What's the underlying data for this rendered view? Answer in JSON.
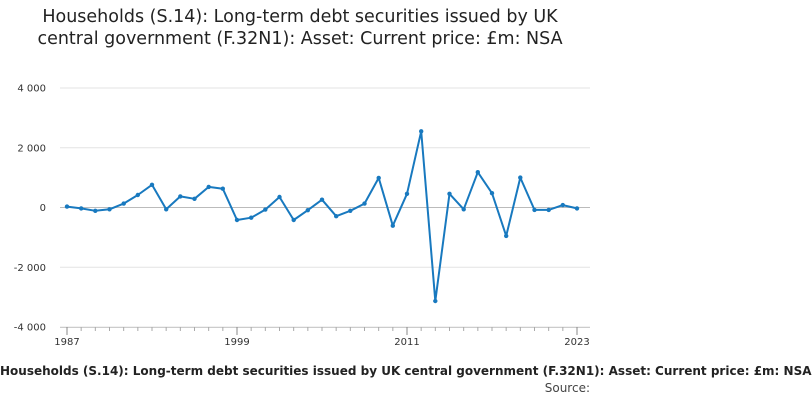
{
  "chart_data": {
    "type": "line",
    "title": "Households (S.14): Long-term debt securities issued by UK central government (F.32N1): Asset: Current price: £m: NSA",
    "xlabel": "",
    "ylabel": "",
    "x": [
      1987,
      1988,
      1989,
      1990,
      1991,
      1992,
      1993,
      1994,
      1995,
      1996,
      1997,
      1998,
      1999,
      2000,
      2001,
      2002,
      2003,
      2004,
      2005,
      2006,
      2007,
      2008,
      2009,
      2010,
      2011,
      2012,
      2013,
      2014,
      2015,
      2016,
      2017,
      2018,
      2019,
      2020,
      2021,
      2022,
      2023
    ],
    "series": [
      {
        "name": "",
        "values": [
          30,
          -30,
          -110,
          -60,
          130,
          420,
          760,
          -60,
          370,
          290,
          690,
          630,
          -420,
          -340,
          -70,
          350,
          -420,
          -90,
          260,
          -290,
          -110,
          130,
          990,
          -610,
          460,
          2550,
          -3130,
          460,
          -60,
          1180,
          480,
          -950,
          1000,
          -80,
          -80,
          80,
          -30
        ]
      }
    ],
    "xticks": [
      "1987",
      "1999",
      "2011",
      "2023"
    ],
    "yticks": [
      "4 000",
      "2 000",
      "0",
      "-2 000",
      "-4 000"
    ],
    "ylim": [
      -4000,
      4000
    ],
    "xlim": [
      1987,
      2023
    ],
    "grid": "horizontal",
    "legend": "none",
    "line_color": "#1879bf"
  },
  "caption": "Households (S.14): Long-term debt securities issued by UK central government (F.32N1): Asset: Current price: £m: NSA",
  "source": "Source:"
}
